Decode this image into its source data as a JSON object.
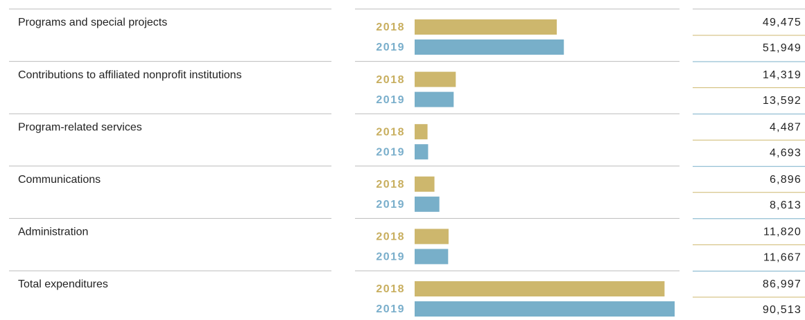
{
  "chart_data": {
    "type": "bar",
    "categories": [
      "Programs and special projects",
      "Contributions to affiliated nonprofit institutions",
      "Program-related services",
      "Communications",
      "Administration",
      "Total expenditures"
    ],
    "series": [
      {
        "name": "2018",
        "color": "#cdb76d",
        "values": [
          49475,
          14319,
          4487,
          6896,
          11820,
          86997
        ],
        "value_labels": [
          "49,475",
          "14,319",
          "4,487",
          "6,896",
          "11,820",
          "86,997"
        ]
      },
      {
        "name": "2019",
        "color": "#78afc9",
        "values": [
          51949,
          13592,
          4693,
          8613,
          11667,
          90513
        ],
        "value_labels": [
          "51,949",
          "13,592",
          "4,693",
          "8,613",
          "11,667",
          "90,513"
        ]
      }
    ]
  }
}
